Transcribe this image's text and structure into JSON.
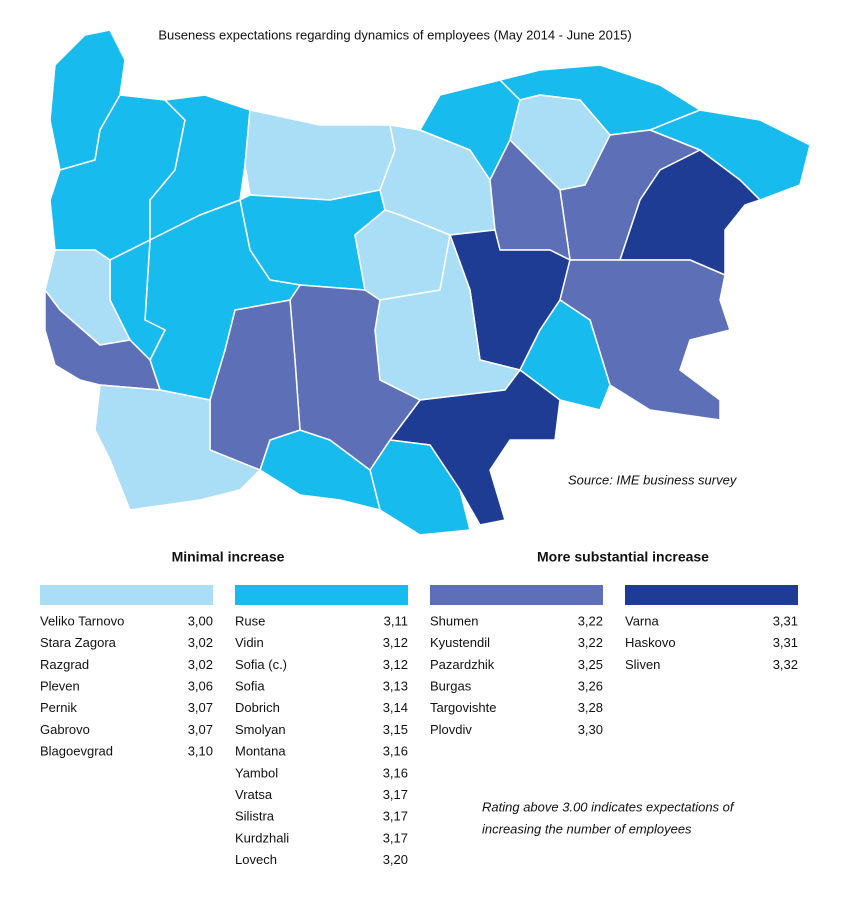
{
  "title": "Buseness expectations regarding dynamics of employees (May 2014 - June 2015)",
  "source": "Source: IME business survey",
  "headings": [
    "Minimal increase",
    "More substantial increase"
  ],
  "groups": [
    {
      "color": "#a9def6",
      "rows": [
        {
          "name": "Veliko Tarnovo",
          "value": "3,00"
        },
        {
          "name": "Stara Zagora",
          "value": "3,02"
        },
        {
          "name": "Razgrad",
          "value": "3,02"
        },
        {
          "name": "Pleven",
          "value": "3,06"
        },
        {
          "name": "Pernik",
          "value": "3,07"
        },
        {
          "name": "Gabrovo",
          "value": "3,07"
        },
        {
          "name": "Blagoevgrad",
          "value": "3,10"
        }
      ]
    },
    {
      "color": "#18bbee",
      "rows": [
        {
          "name": "Ruse",
          "value": "3,11"
        },
        {
          "name": "Vidin",
          "value": "3,12"
        },
        {
          "name": "Sofia (c.)",
          "value": "3,12"
        },
        {
          "name": "Sofia",
          "value": "3,13"
        },
        {
          "name": "Dobrich",
          "value": "3,14"
        },
        {
          "name": "Smolyan",
          "value": "3,15"
        },
        {
          "name": "Montana",
          "value": "3,16"
        },
        {
          "name": "Yambol",
          "value": "3,16"
        },
        {
          "name": "Vratsa",
          "value": "3,17"
        },
        {
          "name": "Silistra",
          "value": "3,17"
        },
        {
          "name": "Kurdzhali",
          "value": "3,17"
        },
        {
          "name": "Lovech",
          "value": "3,20"
        }
      ]
    },
    {
      "color": "#5d6fb7",
      "rows": [
        {
          "name": "Shumen",
          "value": "3,22"
        },
        {
          "name": "Kyustendil",
          "value": "3,22"
        },
        {
          "name": "Pazardzhik",
          "value": "3,25"
        },
        {
          "name": "Burgas",
          "value": "3,26"
        },
        {
          "name": "Targovishte",
          "value": "3,28"
        },
        {
          "name": "Plovdiv",
          "value": "3,30"
        }
      ]
    },
    {
      "color": "#1e3c94",
      "rows": [
        {
          "name": "Varna",
          "value": "3,31"
        },
        {
          "name": "Haskovo",
          "value": "3,31"
        },
        {
          "name": "Sliven",
          "value": "3,32"
        }
      ]
    }
  ],
  "note": [
    "Rating above 3.00 indicates expectations of",
    "increasing the number of employees"
  ]
}
